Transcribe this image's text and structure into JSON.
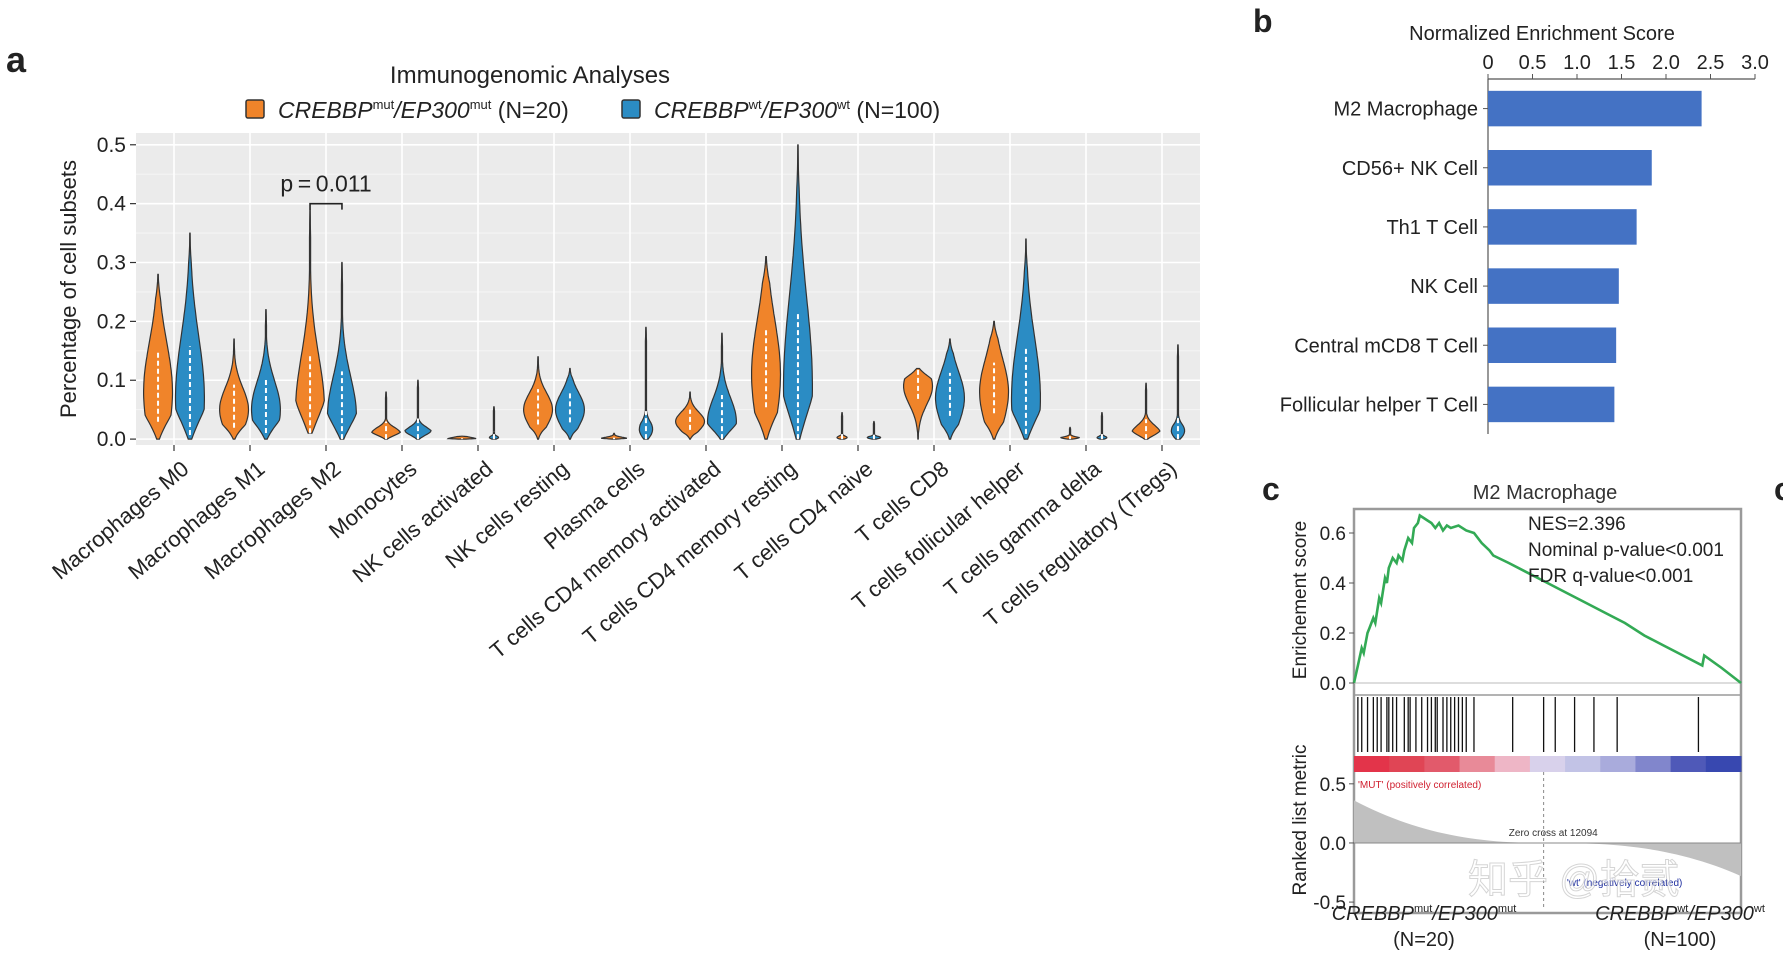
{
  "panel_labels": {
    "a": "a",
    "b": "b",
    "c": "c",
    "d": "c"
  },
  "colors": {
    "mut": "#f0842a",
    "wt": "#2b8cc4",
    "panel_bg": "#ebebeb",
    "bar": "#4472c4",
    "es_line": "#33aa55",
    "dark": "#333333"
  },
  "chart_data": [
    {
      "type": "violin",
      "title": "Immunogenomic Analyses",
      "legend": [
        {
          "gene1": "CREBBP",
          "sup1": "mut",
          "sep": "/",
          "gene2": "EP300",
          "sup2": "mut",
          "n": " (N=20)",
          "color_key": "mut"
        },
        {
          "gene1": "CREBBP",
          "sup1": "wt",
          "sep": "/",
          "gene2": "EP300",
          "sup2": "wt",
          "n": " (N=100)",
          "color_key": "wt"
        }
      ],
      "ylabel": "Percentage of cell subsets",
      "ylim": [
        -0.01,
        0.52
      ],
      "yticks": [
        {
          "v": 0.0,
          "label": "0.0"
        },
        {
          "v": 0.1,
          "label": "0.1"
        },
        {
          "v": 0.2,
          "label": "0.2"
        },
        {
          "v": 0.3,
          "label": "0.3"
        },
        {
          "v": 0.4,
          "label": "0.4"
        },
        {
          "v": 0.5,
          "label": "0.5"
        }
      ],
      "annotation": {
        "text": "p = 0.011",
        "category_index": 2
      },
      "categories": [
        {
          "name": "Macrophages M0",
          "mut": [
            0,
            0.28,
            0.08,
            0.3
          ],
          "wt": [
            0,
            0.35,
            0.07,
            0.3
          ]
        },
        {
          "name": "Macrophages M1",
          "mut": [
            0,
            0.17,
            0.05,
            0.22
          ],
          "wt": [
            0,
            0.22,
            0.05,
            0.22
          ]
        },
        {
          "name": "Macrophages M2",
          "mut": [
            0.01,
            0.39,
            0.05,
            0.24
          ],
          "wt": [
            0,
            0.3,
            0.04,
            0.22
          ]
        },
        {
          "name": "Monocytes",
          "mut": [
            0,
            0.08,
            0.01,
            0.12
          ],
          "wt": [
            0,
            0.1,
            0.01,
            0.1
          ]
        },
        {
          "name": "NK cells activated",
          "mut": [
            0,
            0.005,
            0,
            0.02
          ],
          "wt": [
            0,
            0.055,
            0,
            0.06
          ]
        },
        {
          "name": "NK cells resting",
          "mut": [
            0,
            0.14,
            0.05,
            0.2
          ],
          "wt": [
            0,
            0.12,
            0.05,
            0.24
          ]
        },
        {
          "name": "Plasma cells",
          "mut": [
            0,
            0.01,
            0,
            0.06
          ],
          "wt": [
            0,
            0.19,
            0,
            0.1
          ]
        },
        {
          "name": "T cells CD4 memory activated",
          "mut": [
            0,
            0.08,
            0.03,
            0.2
          ],
          "wt": [
            0,
            0.18,
            0.03,
            0.22
          ]
        },
        {
          "name": "T cells CD4 memory resting",
          "mut": [
            0,
            0.31,
            0.11,
            0.3
          ],
          "wt": [
            0,
            0.5,
            0.09,
            0.3
          ]
        },
        {
          "name": "T cells CD4 naive",
          "mut": [
            0,
            0.045,
            0,
            0.07
          ],
          "wt": [
            0,
            0.03,
            0,
            0.06
          ]
        },
        {
          "name": "T cells CD8",
          "mut": [
            0,
            0.12,
            0.09,
            0.26
          ],
          "wt": [
            0,
            0.17,
            0.07,
            0.26
          ]
        },
        {
          "name": "T cells follicular helper",
          "mut": [
            0,
            0.2,
            0.08,
            0.28
          ],
          "wt": [
            0,
            0.34,
            0.07,
            0.3
          ]
        },
        {
          "name": "T cells gamma delta",
          "mut": [
            0,
            0.02,
            0,
            0.08
          ],
          "wt": [
            0,
            0.045,
            0,
            0.06
          ]
        },
        {
          "name": "T cells regulatory (Tregs)",
          "mut": [
            0,
            0.095,
            0.01,
            0.14
          ],
          "wt": [
            0,
            0.16,
            0,
            0.1
          ]
        }
      ]
    },
    {
      "type": "bar",
      "orientation": "horizontal",
      "title": "Normalized Enrichment Score",
      "xlim": [
        0,
        3.0
      ],
      "xticks": [
        {
          "v": 0,
          "label": "0"
        },
        {
          "v": 0.5,
          "label": "0.5"
        },
        {
          "v": 1.0,
          "label": "1.0"
        },
        {
          "v": 1.5,
          "label": "1.5"
        },
        {
          "v": 2.0,
          "label": "2.0"
        },
        {
          "v": 2.5,
          "label": "2.5"
        },
        {
          "v": 3.0,
          "label": "3.0"
        }
      ],
      "categories": [
        "M2 Macrophage",
        "CD56+ NK Cell",
        "Th1 T Cell",
        "NK Cell",
        "Central mCD8 T Cell",
        "Follicular helper T Cell"
      ],
      "values": [
        2.4,
        1.84,
        1.67,
        1.47,
        1.44,
        1.42
      ]
    },
    {
      "type": "line",
      "title": "M2 Macrophage",
      "ylabel": "Enrichement score",
      "ylim": [
        -0.02,
        0.68
      ],
      "yticks": [
        {
          "v": 0.0,
          "label": "0.0"
        },
        {
          "v": 0.2,
          "label": "0.2"
        },
        {
          "v": 0.4,
          "label": "0.4"
        },
        {
          "v": 0.6,
          "label": "0.6"
        }
      ],
      "stats": [
        "NES=2.396",
        "Nominal p-value<0.001",
        "FDR q-value<0.001"
      ],
      "x": [
        0,
        0.01,
        0.02,
        0.025,
        0.035,
        0.04,
        0.05,
        0.055,
        0.065,
        0.07,
        0.08,
        0.085,
        0.09,
        0.1,
        0.11,
        0.115,
        0.125,
        0.13,
        0.14,
        0.15,
        0.155,
        0.165,
        0.17,
        0.18,
        0.19,
        0.2,
        0.21,
        0.22,
        0.23,
        0.24,
        0.25,
        0.27,
        0.29,
        0.31,
        0.33,
        0.35,
        0.36,
        0.4,
        0.5,
        0.55,
        0.6,
        0.65,
        0.7,
        0.75,
        0.8,
        0.85,
        0.9,
        0.905,
        0.95,
        1.0
      ],
      "es": [
        0,
        0.07,
        0.14,
        0.12,
        0.2,
        0.22,
        0.26,
        0.24,
        0.34,
        0.32,
        0.42,
        0.4,
        0.46,
        0.5,
        0.48,
        0.51,
        0.49,
        0.53,
        0.58,
        0.56,
        0.62,
        0.64,
        0.67,
        0.66,
        0.65,
        0.64,
        0.62,
        0.64,
        0.61,
        0.63,
        0.62,
        0.63,
        0.61,
        0.6,
        0.56,
        0.53,
        0.51,
        0.48,
        0.4,
        0.36,
        0.32,
        0.28,
        0.24,
        0.19,
        0.15,
        0.11,
        0.07,
        0.11,
        0.06,
        0.0
      ],
      "hits": [
        0.01,
        0.02,
        0.035,
        0.05,
        0.06,
        0.07,
        0.085,
        0.09,
        0.1,
        0.11,
        0.13,
        0.14,
        0.145,
        0.16,
        0.175,
        0.19,
        0.2,
        0.21,
        0.215,
        0.23,
        0.24,
        0.25,
        0.26,
        0.27,
        0.28,
        0.29,
        0.31,
        0.41,
        0.49,
        0.52,
        0.57,
        0.62,
        0.68,
        0.89
      ],
      "heat_colors": [
        "#e3344a",
        "#e04555",
        "#e25a6b",
        "#e88a98",
        "#eeb6c6",
        "#d8d1eb",
        "#c2c3e6",
        "#a9abdc",
        "#8186cc",
        "#4f59b8",
        "#3848b0"
      ],
      "metric_ylabel": "Ranked list metric",
      "metric_yticks": [
        {
          "v": 0.5,
          "label": "0.5"
        },
        {
          "v": 0.0,
          "label": "0.0"
        },
        {
          "v": -0.5,
          "label": "-0.5"
        }
      ],
      "metric_ylim": [
        -0.55,
        0.6
      ],
      "pos_label": "'MUT' (positively correlated)",
      "neg_label": "'wt' (negatively correlated)",
      "zero_cross": "Zero cross at 12094",
      "x_left": {
        "gene1": "CREBBP",
        "sup1": "mut",
        "sep": "/",
        "gene2": "EP300",
        "sup2": "mut",
        "n": "(N=20)"
      },
      "x_right": {
        "gene1": "CREBBP",
        "sup1": "wt",
        "sep": "/",
        "gene2": "EP300",
        "sup2": "wt",
        "n": "(N=100)"
      }
    }
  ],
  "watermark": "知乎 @拾贰"
}
